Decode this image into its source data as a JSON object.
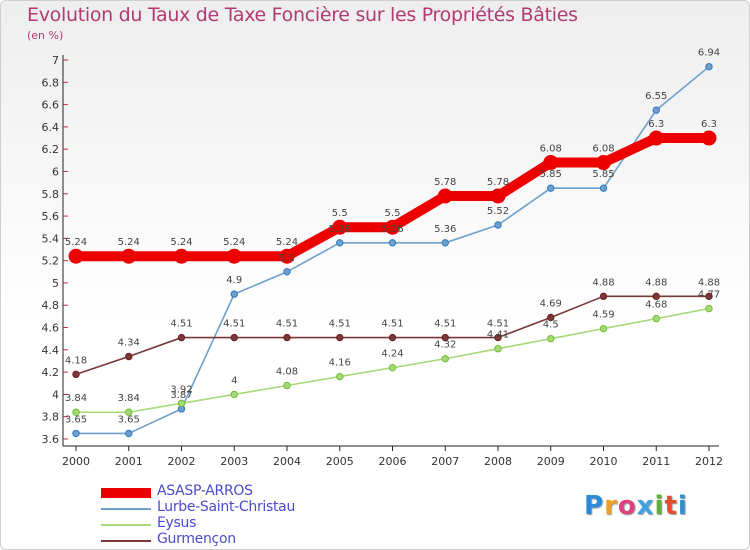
{
  "title": "Evolution du Taux de Taxe Foncière sur les Propriétés Bâties",
  "unit": "(en %)",
  "logo": "Proxiti",
  "chart_data": {
    "type": "line",
    "title": "Evolution du Taux de Taxe Foncière sur les Propriétés Bâties",
    "ylabel": "(en %)",
    "xlabel": "",
    "x": [
      "2000",
      "2001",
      "2002",
      "2003",
      "2004",
      "2005",
      "2006",
      "2007",
      "2008",
      "2009",
      "2010",
      "2011",
      "2012"
    ],
    "ylim": [
      3.6,
      7.0
    ],
    "yticks": [
      "3.6",
      "3.8",
      "4",
      "4.2",
      "4.4",
      "4.6",
      "4.8",
      "5",
      "5.2",
      "5.4",
      "5.6",
      "5.8",
      "6",
      "6.2",
      "6.4",
      "6.6",
      "6.8",
      "7"
    ],
    "series": [
      {
        "name": "ASASP-ARROS",
        "color": "#ee0000",
        "labels": [
          "5.24",
          "5.24",
          "5.24",
          "5.24",
          "5.24",
          "5.5",
          "5.5",
          "5.78",
          "5.78",
          "6.08",
          "6.08",
          "6.3",
          "6.3"
        ],
        "values": [
          5.24,
          5.24,
          5.24,
          5.24,
          5.24,
          5.5,
          5.5,
          5.78,
          5.78,
          6.08,
          6.08,
          6.3,
          6.3
        ]
      },
      {
        "name": "Lurbe-Saint-Christau",
        "color": "#6ea0cc",
        "labels": [
          "3.65",
          "3.65",
          "3.87",
          "4.9",
          "5.1",
          "5.36",
          "5.36",
          "5.36",
          "5.52",
          "5.85",
          "5.85",
          "6.55",
          "6.94"
        ],
        "values": [
          3.65,
          3.65,
          3.87,
          4.9,
          5.1,
          5.36,
          5.36,
          5.36,
          5.52,
          5.85,
          5.85,
          6.55,
          6.94
        ]
      },
      {
        "name": "Eysus",
        "color": "#a8d878",
        "labels": [
          "3.84",
          "3.84",
          "3.92",
          "4",
          "4.08",
          "4.16",
          "4.24",
          "4.32",
          "4.41",
          "4.5",
          "4.59",
          "4.68",
          "4.77"
        ],
        "values": [
          3.84,
          3.84,
          3.92,
          4.0,
          4.08,
          4.16,
          4.24,
          4.32,
          4.41,
          4.5,
          4.59,
          4.68,
          4.77
        ]
      },
      {
        "name": "Gurmençon",
        "color": "#7a3838",
        "labels": [
          "4.18",
          "4.34",
          "4.51",
          "4.51",
          "4.51",
          "4.51",
          "4.51",
          "4.51",
          "4.51",
          "4.69",
          "4.88",
          "4.88",
          "4.88"
        ],
        "values": [
          4.18,
          4.34,
          4.51,
          4.51,
          4.51,
          4.51,
          4.51,
          4.51,
          4.51,
          4.69,
          4.88,
          4.88,
          4.88
        ]
      }
    ],
    "legend": "bottom-left",
    "grid": false
  }
}
